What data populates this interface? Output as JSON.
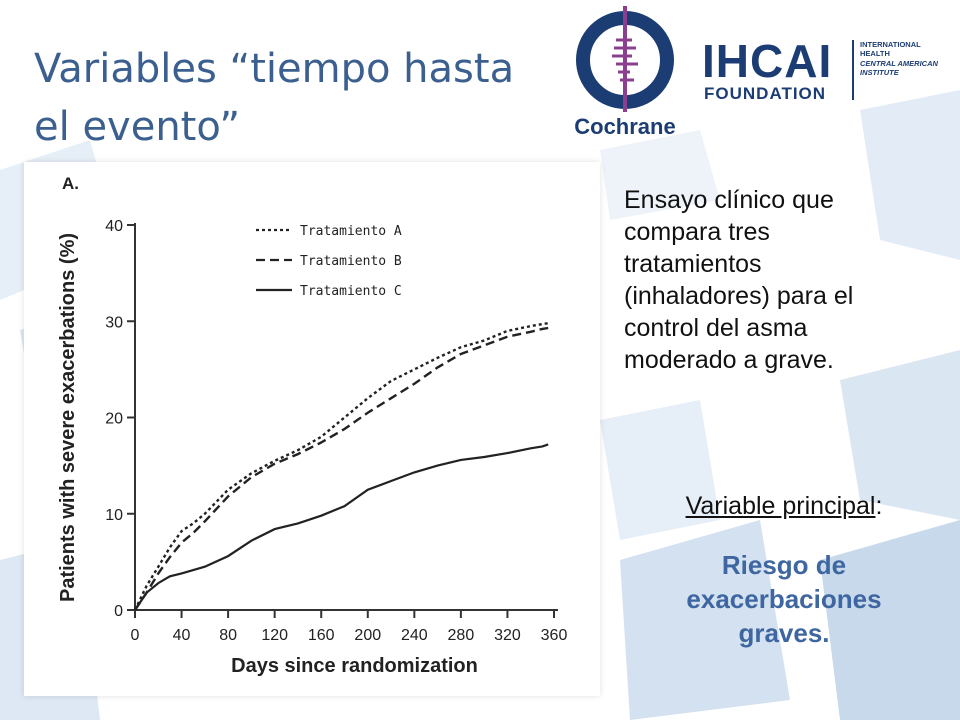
{
  "title": {
    "line1": "Variables “tiempo hasta",
    "line2": "el evento”"
  },
  "logos": {
    "cochrane": "Cochrane",
    "ihcai": {
      "big": "IHCAI",
      "foundation": "FOUNDATION",
      "sub1": "INTERNATIONAL",
      "sub2": "HEALTH",
      "sub3": "CENTRAL AMERICAN",
      "sub4": "INSTITUTE"
    }
  },
  "colors": {
    "title": "#3b5f8f",
    "accent": "#3e66a0",
    "logo": "#1c3c74",
    "cochrane_ring": "#1c3c74",
    "cochrane_tree": "#8a3f8f"
  },
  "description": [
    "Ensayo clínico que",
    "compara tres",
    "tratamientos",
    "(inhaladores) para el",
    "control del asma",
    "moderado a grave."
  ],
  "variable": {
    "label": "Variable principal",
    "colon": ":",
    "value": [
      "Riesgo de",
      "exacerbaciones",
      "graves."
    ]
  },
  "chart_data": {
    "type": "line",
    "panel_label": "A.",
    "xlabel": "Days since randomization",
    "ylabel": "Patients with severe exacerbations (%)",
    "xlim": [
      0,
      360
    ],
    "ylim": [
      0,
      40
    ],
    "xticks": [
      0,
      40,
      80,
      120,
      160,
      200,
      240,
      280,
      320,
      360
    ],
    "yticks": [
      0,
      10,
      20,
      30,
      40
    ],
    "grid": false,
    "legend_position": "top-left",
    "series": [
      {
        "name": "Tratamiento A",
        "style": "dotted",
        "x": [
          0,
          10,
          20,
          30,
          40,
          50,
          60,
          80,
          100,
          120,
          140,
          160,
          180,
          200,
          220,
          240,
          260,
          280,
          300,
          320,
          340,
          350,
          355
        ],
        "y": [
          0,
          2.5,
          4.5,
          6.5,
          8.2,
          9,
          10,
          12.5,
          14.2,
          15.5,
          16.6,
          18,
          20,
          22,
          23.8,
          25,
          26.2,
          27.3,
          28,
          29,
          29.5,
          29.7,
          29.8
        ]
      },
      {
        "name": "Tratamiento B",
        "style": "dashed",
        "x": [
          0,
          10,
          20,
          30,
          40,
          50,
          60,
          80,
          100,
          120,
          140,
          160,
          180,
          200,
          220,
          240,
          260,
          280,
          300,
          320,
          340,
          350,
          355
        ],
        "y": [
          0,
          1.8,
          3.8,
          5.5,
          7,
          8,
          9.2,
          11.8,
          13.8,
          15.2,
          16.2,
          17.4,
          18.8,
          20.5,
          22,
          23.5,
          25.2,
          26.6,
          27.5,
          28.4,
          28.9,
          29.2,
          29.3
        ]
      },
      {
        "name": "Tratamiento C",
        "style": "solid",
        "x": [
          0,
          10,
          20,
          30,
          40,
          60,
          80,
          100,
          120,
          140,
          160,
          180,
          200,
          220,
          240,
          260,
          280,
          300,
          320,
          340,
          350,
          355
        ],
        "y": [
          0,
          1.8,
          2.8,
          3.5,
          3.8,
          4.5,
          5.6,
          7.2,
          8.4,
          9,
          9.8,
          10.8,
          12.5,
          13.4,
          14.3,
          15,
          15.6,
          15.9,
          16.3,
          16.8,
          17,
          17.2
        ]
      }
    ]
  }
}
